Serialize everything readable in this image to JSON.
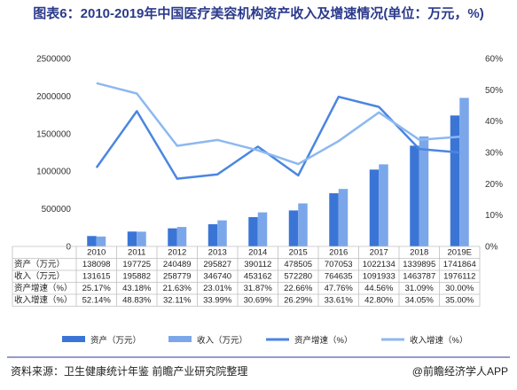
{
  "title": "图表6：2010-2019年中国医疗美容机构资产收入及增速情况(单位：万元，%)",
  "source": "资料来源：卫生健康统计年鉴 前瞻产业研究院整理",
  "brand": "@前瞻经济学人APP",
  "colors": {
    "assets_bar": "#3a75d6",
    "income_bar": "#7ba7ea",
    "assets_growth": "#4a86e0",
    "income_growth": "#8db8f0"
  },
  "chart_data": {
    "type": "bar",
    "categories": [
      "2010",
      "2011",
      "2012",
      "2013",
      "2014",
      "2015",
      "2016",
      "2017",
      "2018",
      "2019E"
    ],
    "series": [
      {
        "name": "资产（万元）",
        "type": "bar",
        "axis": "left",
        "values": [
          138098,
          197725,
          240489,
          295827,
          390112,
          478505,
          707053,
          1022134,
          1339895,
          1741864
        ]
      },
      {
        "name": "收入（万元）",
        "type": "bar",
        "axis": "left",
        "values": [
          131615,
          195882,
          258779,
          346740,
          453162,
          572280,
          764635,
          1091933,
          1463787,
          1976112
        ]
      },
      {
        "name": "资产增速（%）",
        "type": "line",
        "axis": "right",
        "values": [
          25.17,
          43.18,
          21.63,
          23.01,
          31.87,
          22.66,
          47.76,
          44.56,
          31.09,
          30.0
        ]
      },
      {
        "name": "收入增速（%）",
        "type": "line",
        "axis": "right",
        "values": [
          52.14,
          48.83,
          32.11,
          33.99,
          30.69,
          26.29,
          33.61,
          42.8,
          34.05,
          35.0
        ]
      }
    ],
    "table": {
      "row_labels": [
        "资产（万元）",
        "收入（万元）",
        "资产增速（%）",
        "收入增速（%）"
      ],
      "rows": [
        [
          "138098",
          "197725",
          "240489",
          "295827",
          "390112",
          "478505",
          "707053",
          "1022134",
          "1339895",
          "1741864"
        ],
        [
          "131615",
          "195882",
          "258779",
          "346740",
          "453162",
          "572280",
          "764635",
          "1091933",
          "1463787",
          "1976112"
        ],
        [
          "25.17%",
          "43.18%",
          "21.63%",
          "23.01%",
          "31.87%",
          "22.66%",
          "47.76%",
          "44.56%",
          "31.09%",
          "30.00%"
        ],
        [
          "52.14%",
          "48.83%",
          "32.11%",
          "33.99%",
          "30.69%",
          "26.29%",
          "33.61%",
          "42.80%",
          "34.05%",
          "35.00%"
        ]
      ]
    },
    "y_left": {
      "min": 0,
      "max": 2500000,
      "ticks": [
        0,
        500000,
        1000000,
        1500000,
        2000000,
        2500000
      ],
      "tick_labels": [
        "0",
        "500000",
        "1000000",
        "1500000",
        "2000000",
        "2500000"
      ]
    },
    "y_right": {
      "min": 0,
      "max": 60,
      "ticks": [
        0,
        10,
        20,
        30,
        40,
        50,
        60
      ],
      "tick_labels": [
        "0%",
        "10%",
        "20%",
        "30%",
        "40%",
        "50%",
        "60%"
      ]
    },
    "legend": {
      "position": "bottom",
      "items": [
        "资产（万元）",
        "收入（万元）",
        "资产增速（%）",
        "收入增速（%）"
      ]
    },
    "grid": false
  }
}
